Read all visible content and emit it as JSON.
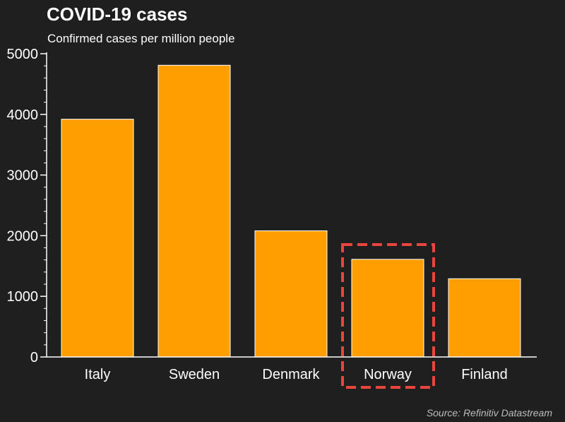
{
  "chart_data": {
    "type": "bar",
    "title": "COVID-19 cases",
    "subtitle": "Confirmed cases per million people",
    "categories": [
      "Italy",
      "Sweden",
      "Denmark",
      "Norway",
      "Finland"
    ],
    "values": [
      3920,
      4810,
      2080,
      1610,
      1290
    ],
    "ylim": [
      0,
      5000
    ],
    "yticks": [
      0,
      1000,
      2000,
      3000,
      4000,
      5000
    ],
    "highlighted_category": "Norway",
    "grid": false,
    "legend": "none",
    "source": "Source: Refinitiv Datastream"
  },
  "colors": {
    "background": "#1f1f1f",
    "bar": "#ff9e00",
    "bar_edge": "#ffffff",
    "highlight_box": "#e8453c",
    "axis": "#ffffff",
    "source_text": "#bdbdbd"
  }
}
